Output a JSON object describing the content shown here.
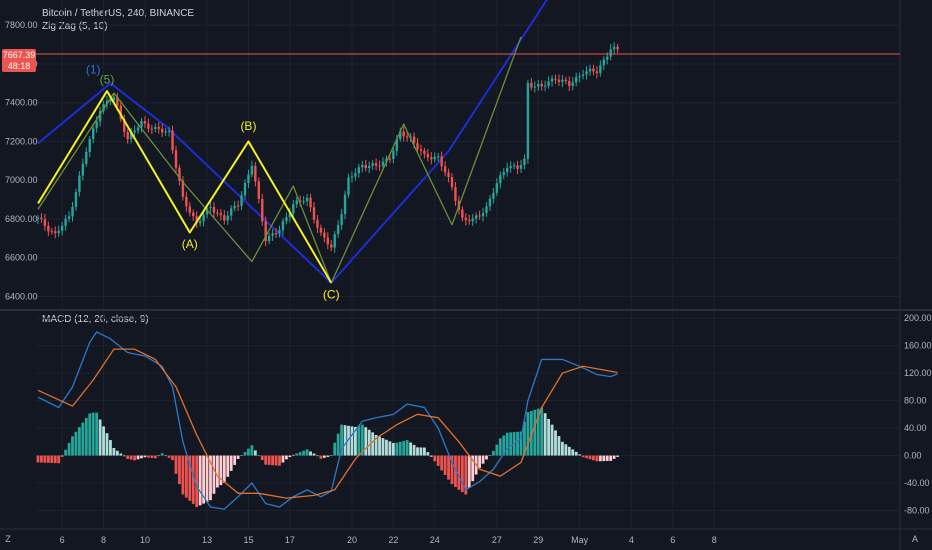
{
  "header": {
    "symbol": "Bitcoin / TetherUS, 240, BINANCE",
    "indicator": "Zig Zag (5, 10)",
    "macd_label": "MACD (12, 26, close, 9)"
  },
  "price_tag": {
    "price": "7667.39",
    "countdown": "48:18"
  },
  "corner_labels": {
    "left": "Z",
    "right": "A"
  },
  "colors": {
    "background": "#131722",
    "up": "#26a69a",
    "down": "#ef5350",
    "zigzag_big": "#1f2bd6",
    "zigzag_small": "#6b8f3a",
    "elliott": "#f4f11e",
    "wave_label_blue": "#2f6fd8",
    "wave_label_green": "#5fa349",
    "macd_line": "#2d79c7",
    "signal_line": "#e0702d",
    "price_line": "#ef5350"
  },
  "chart_data": [
    {
      "type": "candlestick",
      "title": "Bitcoin / TetherUS, 240, BINANCE",
      "ylim": [
        6330,
        7930
      ],
      "y_ticks": [
        "6400.00",
        "6600.00",
        "6800.00",
        "7000.00",
        "7200.00",
        "7400.00",
        "7600.00",
        "7800.00"
      ],
      "x_ticks": [
        "6",
        "8",
        "10",
        "13",
        "15",
        "17",
        "20",
        "22",
        "24",
        "27",
        "29",
        "May",
        "4",
        "6",
        "8"
      ],
      "last_price": 7667.39,
      "price_path": [
        {
          "i": 0,
          "p": 6800
        },
        {
          "i": 5,
          "p": 6720
        },
        {
          "i": 9,
          "p": 6810
        },
        {
          "i": 14,
          "p": 7150
        },
        {
          "i": 18,
          "p": 7370
        },
        {
          "i": 22,
          "p": 7430
        },
        {
          "i": 26,
          "p": 7210
        },
        {
          "i": 30,
          "p": 7300
        },
        {
          "i": 34,
          "p": 7260
        },
        {
          "i": 38,
          "p": 7250
        },
        {
          "i": 42,
          "p": 6900
        },
        {
          "i": 46,
          "p": 6780
        },
        {
          "i": 50,
          "p": 6860
        },
        {
          "i": 54,
          "p": 6800
        },
        {
          "i": 58,
          "p": 6880
        },
        {
          "i": 62,
          "p": 7080
        },
        {
          "i": 66,
          "p": 6700
        },
        {
          "i": 70,
          "p": 6740
        },
        {
          "i": 74,
          "p": 6880
        },
        {
          "i": 78,
          "p": 6900
        },
        {
          "i": 82,
          "p": 6720
        },
        {
          "i": 85,
          "p": 6650
        },
        {
          "i": 88,
          "p": 6840
        },
        {
          "i": 90,
          "p": 7000
        },
        {
          "i": 94,
          "p": 7080
        },
        {
          "i": 98,
          "p": 7070
        },
        {
          "i": 102,
          "p": 7120
        },
        {
          "i": 105,
          "p": 7240
        },
        {
          "i": 108,
          "p": 7220
        },
        {
          "i": 112,
          "p": 7120
        },
        {
          "i": 116,
          "p": 7120
        },
        {
          "i": 120,
          "p": 6960
        },
        {
          "i": 123,
          "p": 6800
        },
        {
          "i": 126,
          "p": 6790
        },
        {
          "i": 130,
          "p": 6860
        },
        {
          "i": 133,
          "p": 6980
        },
        {
          "i": 136,
          "p": 7080
        },
        {
          "i": 139,
          "p": 7060
        },
        {
          "i": 141,
          "p": 7100
        },
        {
          "i": 142,
          "p": 7500
        },
        {
          "i": 146,
          "p": 7480
        },
        {
          "i": 150,
          "p": 7530
        },
        {
          "i": 154,
          "p": 7490
        },
        {
          "i": 158,
          "p": 7560
        },
        {
          "i": 162,
          "p": 7560
        },
        {
          "i": 166,
          "p": 7680
        },
        {
          "i": 168,
          "p": 7667
        }
      ],
      "zigzag_big": [
        {
          "i": 0,
          "p": 7190
        },
        {
          "i": 21,
          "p": 7500
        },
        {
          "i": 37,
          "p": 7280
        },
        {
          "i": 85,
          "p": 6470
        },
        {
          "i": 119,
          "p": 7150
        },
        {
          "i": 150,
          "p": 8000
        }
      ],
      "zigzag_small": [
        {
          "i": 0,
          "p": 6850
        },
        {
          "i": 22,
          "p": 7450
        },
        {
          "i": 42,
          "p": 6990
        },
        {
          "i": 62,
          "p": 6580
        },
        {
          "i": 74,
          "p": 6970
        },
        {
          "i": 85,
          "p": 6470
        },
        {
          "i": 106,
          "p": 7290
        },
        {
          "i": 120,
          "p": 6770
        },
        {
          "i": 140,
          "p": 7740
        }
      ],
      "elliott_wave": [
        {
          "i": 0,
          "p": 6880
        },
        {
          "i": 20,
          "p": 7460
        },
        {
          "i": 44,
          "p": 6730
        },
        {
          "i": 61,
          "p": 7200
        },
        {
          "i": 85,
          "p": 6470
        }
      ],
      "wave_labels": [
        {
          "text": "(1)",
          "i": 16,
          "p": 7550,
          "color": "blue"
        },
        {
          "text": "(5)",
          "i": 20,
          "p": 7500,
          "color": "green"
        },
        {
          "text": "(A)",
          "i": 44,
          "p": 6650,
          "color": "yellow"
        },
        {
          "text": "(B)",
          "i": 61,
          "p": 7260,
          "color": "yellow"
        },
        {
          "text": "(C)",
          "i": 85,
          "p": 6390,
          "color": "yellow"
        }
      ]
    },
    {
      "type": "macd",
      "title": "MACD (12, 26, close, 9)",
      "ylim": [
        -107,
        212
      ],
      "y_ticks": [
        "200.00",
        "160.00",
        "120.00",
        "80.00",
        "40.00",
        "0.00",
        "-40.00",
        "-80.00"
      ],
      "macd_path": [
        {
          "i": 0,
          "v": 85
        },
        {
          "i": 6,
          "v": 70
        },
        {
          "i": 10,
          "v": 100
        },
        {
          "i": 15,
          "v": 165
        },
        {
          "i": 17,
          "v": 180
        },
        {
          "i": 21,
          "v": 170
        },
        {
          "i": 26,
          "v": 150
        },
        {
          "i": 31,
          "v": 145
        },
        {
          "i": 36,
          "v": 130
        },
        {
          "i": 39,
          "v": 100
        },
        {
          "i": 42,
          "v": 20
        },
        {
          "i": 46,
          "v": -45
        },
        {
          "i": 50,
          "v": -75
        },
        {
          "i": 54,
          "v": -78
        },
        {
          "i": 58,
          "v": -60
        },
        {
          "i": 62,
          "v": -40
        },
        {
          "i": 66,
          "v": -70
        },
        {
          "i": 70,
          "v": -75
        },
        {
          "i": 74,
          "v": -60
        },
        {
          "i": 78,
          "v": -50
        },
        {
          "i": 82,
          "v": -60
        },
        {
          "i": 85,
          "v": -52
        },
        {
          "i": 88,
          "v": 10
        },
        {
          "i": 94,
          "v": 50
        },
        {
          "i": 98,
          "v": 55
        },
        {
          "i": 103,
          "v": 60
        },
        {
          "i": 107,
          "v": 75
        },
        {
          "i": 112,
          "v": 70
        },
        {
          "i": 116,
          "v": 40
        },
        {
          "i": 120,
          "v": -10
        },
        {
          "i": 124,
          "v": -50
        },
        {
          "i": 128,
          "v": -38
        },
        {
          "i": 132,
          "v": -20
        },
        {
          "i": 136,
          "v": 10
        },
        {
          "i": 140,
          "v": 25
        },
        {
          "i": 142,
          "v": 80
        },
        {
          "i": 146,
          "v": 140
        },
        {
          "i": 152,
          "v": 140
        },
        {
          "i": 157,
          "v": 130
        },
        {
          "i": 162,
          "v": 118
        },
        {
          "i": 166,
          "v": 115
        },
        {
          "i": 168,
          "v": 119
        }
      ],
      "signal_path": [
        {
          "i": 0,
          "v": 95
        },
        {
          "i": 10,
          "v": 72
        },
        {
          "i": 16,
          "v": 110
        },
        {
          "i": 22,
          "v": 155
        },
        {
          "i": 28,
          "v": 155
        },
        {
          "i": 34,
          "v": 140
        },
        {
          "i": 40,
          "v": 100
        },
        {
          "i": 46,
          "v": 30
        },
        {
          "i": 52,
          "v": -30
        },
        {
          "i": 58,
          "v": -55
        },
        {
          "i": 64,
          "v": -55
        },
        {
          "i": 72,
          "v": -62
        },
        {
          "i": 80,
          "v": -58
        },
        {
          "i": 86,
          "v": -50
        },
        {
          "i": 92,
          "v": -5
        },
        {
          "i": 98,
          "v": 25
        },
        {
          "i": 104,
          "v": 45
        },
        {
          "i": 110,
          "v": 60
        },
        {
          "i": 116,
          "v": 55
        },
        {
          "i": 122,
          "v": 20
        },
        {
          "i": 128,
          "v": -20
        },
        {
          "i": 134,
          "v": -30
        },
        {
          "i": 140,
          "v": -10
        },
        {
          "i": 146,
          "v": 70
        },
        {
          "i": 152,
          "v": 120
        },
        {
          "i": 158,
          "v": 130
        },
        {
          "i": 168,
          "v": 121
        }
      ]
    }
  ]
}
